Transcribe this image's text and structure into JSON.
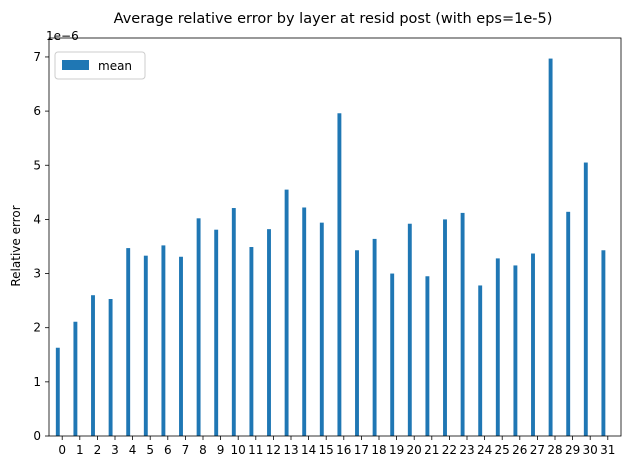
{
  "chart_data": {
    "type": "bar",
    "title": "Average relative error by layer at resid post (with eps=1e-5)",
    "xlabel": "",
    "ylabel": "Relative error",
    "scale_label": "1e−6",
    "categories": [
      "0",
      "1",
      "2",
      "3",
      "4",
      "5",
      "6",
      "7",
      "8",
      "9",
      "10",
      "11",
      "12",
      "13",
      "14",
      "15",
      "16",
      "17",
      "18",
      "19",
      "20",
      "21",
      "22",
      "23",
      "24",
      "25",
      "26",
      "27",
      "28",
      "29",
      "30",
      "31"
    ],
    "series": [
      {
        "name": "mean",
        "color": "#1f77b4",
        "values": [
          1.63,
          2.11,
          2.6,
          2.53,
          3.47,
          3.33,
          3.52,
          3.31,
          4.02,
          3.81,
          4.21,
          3.49,
          3.82,
          4.55,
          4.22,
          3.94,
          5.96,
          3.43,
          3.64,
          3.0,
          3.92,
          2.95,
          4.0,
          4.12,
          2.78,
          3.28,
          3.15,
          3.37,
          6.97,
          4.14,
          5.05,
          3.43
        ]
      }
    ],
    "ylim": [
      0,
      7.35
    ],
    "yticks": [
      0,
      1,
      2,
      3,
      4,
      5,
      6,
      7
    ],
    "grid": false,
    "legend": "top-left"
  }
}
